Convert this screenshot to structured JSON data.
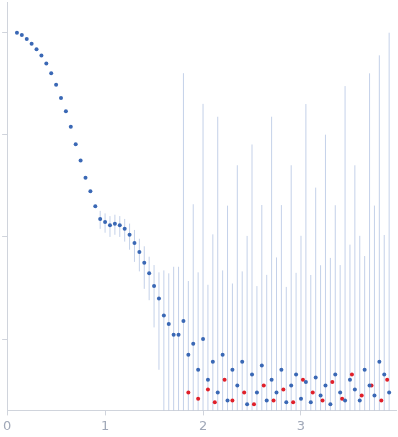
{
  "chart_data": {
    "type": "scatter",
    "xlim": [
      0,
      3.97
    ],
    "xticks": [
      0,
      1,
      2,
      3
    ],
    "ylim": [
      0.0002,
      2
    ],
    "yticks": [
      0.001,
      0.01,
      0.1,
      1
    ],
    "log": "y",
    "grid": false,
    "tick_labels": "x",
    "series": [
      {
        "color": "#3a68b5",
        "x": [
          0.1,
          0.15,
          0.2,
          0.25,
          0.3,
          0.35,
          0.4,
          0.45,
          0.5,
          0.55,
          0.6,
          0.65,
          0.7,
          0.75,
          0.8,
          0.85,
          0.9,
          0.95,
          1.0,
          1.05,
          1.1,
          1.15,
          1.2,
          1.25,
          1.3,
          1.35,
          1.4,
          1.45,
          1.5,
          1.55,
          1.6,
          1.65,
          1.7,
          1.75,
          1.8,
          1.85,
          1.9,
          1.95,
          2.0,
          2.05,
          2.1,
          2.15,
          2.2,
          2.25,
          2.3,
          2.35,
          2.4,
          2.45,
          2.5,
          2.55,
          2.6,
          2.65,
          2.7,
          2.75,
          2.8,
          2.85,
          2.9,
          2.95,
          3.0,
          3.05,
          3.1,
          3.15,
          3.2,
          3.25,
          3.3,
          3.35,
          3.4,
          3.45,
          3.5,
          3.55,
          3.6,
          3.65,
          3.7,
          3.75,
          3.8,
          3.85,
          3.9
        ],
        "values": [
          1.0,
          0.95,
          0.87,
          0.78,
          0.69,
          0.6,
          0.5,
          0.4,
          0.31,
          0.23,
          0.17,
          0.12,
          0.081,
          0.056,
          0.038,
          0.028,
          0.02,
          0.015,
          0.014,
          0.013,
          0.0135,
          0.013,
          0.012,
          0.0105,
          0.0087,
          0.0071,
          0.0056,
          0.0044,
          0.0033,
          0.0025,
          0.0017,
          0.0014,
          0.0011,
          0.0011,
          0.0015,
          0.0007,
          0.0009,
          0.0005,
          0.001,
          0.0004,
          0.0006,
          0.0003,
          0.0007,
          0.00025,
          0.0005,
          0.00035,
          0.0006,
          0.00023,
          0.00045,
          0.0003,
          0.00055,
          0.00025,
          0.0004,
          0.0003,
          0.0005,
          0.00024,
          0.00035,
          0.00045,
          0.00026,
          0.00038,
          0.00024,
          0.00042,
          0.00028,
          0.00035,
          0.00023,
          0.00045,
          0.0003,
          0.00025,
          0.0004,
          0.00032,
          0.00025,
          0.0005,
          0.00035,
          0.00028,
          0.0006,
          0.00045,
          0.0003
        ],
        "errors": [
          0.01,
          0.01,
          0.01,
          0.01,
          0.01,
          0.01,
          0.01,
          0.008,
          0.006,
          0.005,
          0.004,
          0.003,
          0.002,
          0.0015,
          0.001,
          0.0008,
          0.0006,
          0.003,
          0.003,
          0.003,
          0.003,
          0.003,
          0.003,
          0.003,
          0.003,
          0.0025,
          0.0025,
          0.002,
          0.002,
          0.002,
          0.003,
          0.003,
          0.004,
          0.004,
          0.4,
          0.003,
          0.02,
          0.004,
          0.2,
          0.003,
          0.01,
          0.15,
          0.004,
          0.02,
          0.003,
          0.05,
          0.004,
          0.01,
          0.08,
          0.003,
          0.02,
          0.004,
          0.15,
          0.006,
          0.02,
          0.003,
          0.05,
          0.004,
          0.01,
          0.2,
          0.004,
          0.03,
          0.005,
          0.1,
          0.006,
          0.02,
          0.005,
          0.3,
          0.008,
          0.05,
          0.01,
          0.006,
          0.4,
          0.02,
          0.6,
          0.01,
          1.0
        ]
      },
      {
        "color": "#e0202a",
        "x": [
          1.85,
          1.95,
          2.05,
          2.12,
          2.22,
          2.3,
          2.42,
          2.52,
          2.62,
          2.72,
          2.82,
          2.92,
          3.02,
          3.12,
          3.22,
          3.32,
          3.42,
          3.52,
          3.62,
          3.72,
          3.82,
          3.88
        ],
        "values": [
          0.0003,
          0.00026,
          0.00032,
          0.00024,
          0.0004,
          0.00025,
          0.0003,
          0.00023,
          0.00035,
          0.00025,
          0.00032,
          0.00024,
          0.0004,
          0.0003,
          0.00025,
          0.00038,
          0.00026,
          0.00045,
          0.00028,
          0.00035,
          0.00025,
          0.0004
        ]
      }
    ]
  }
}
